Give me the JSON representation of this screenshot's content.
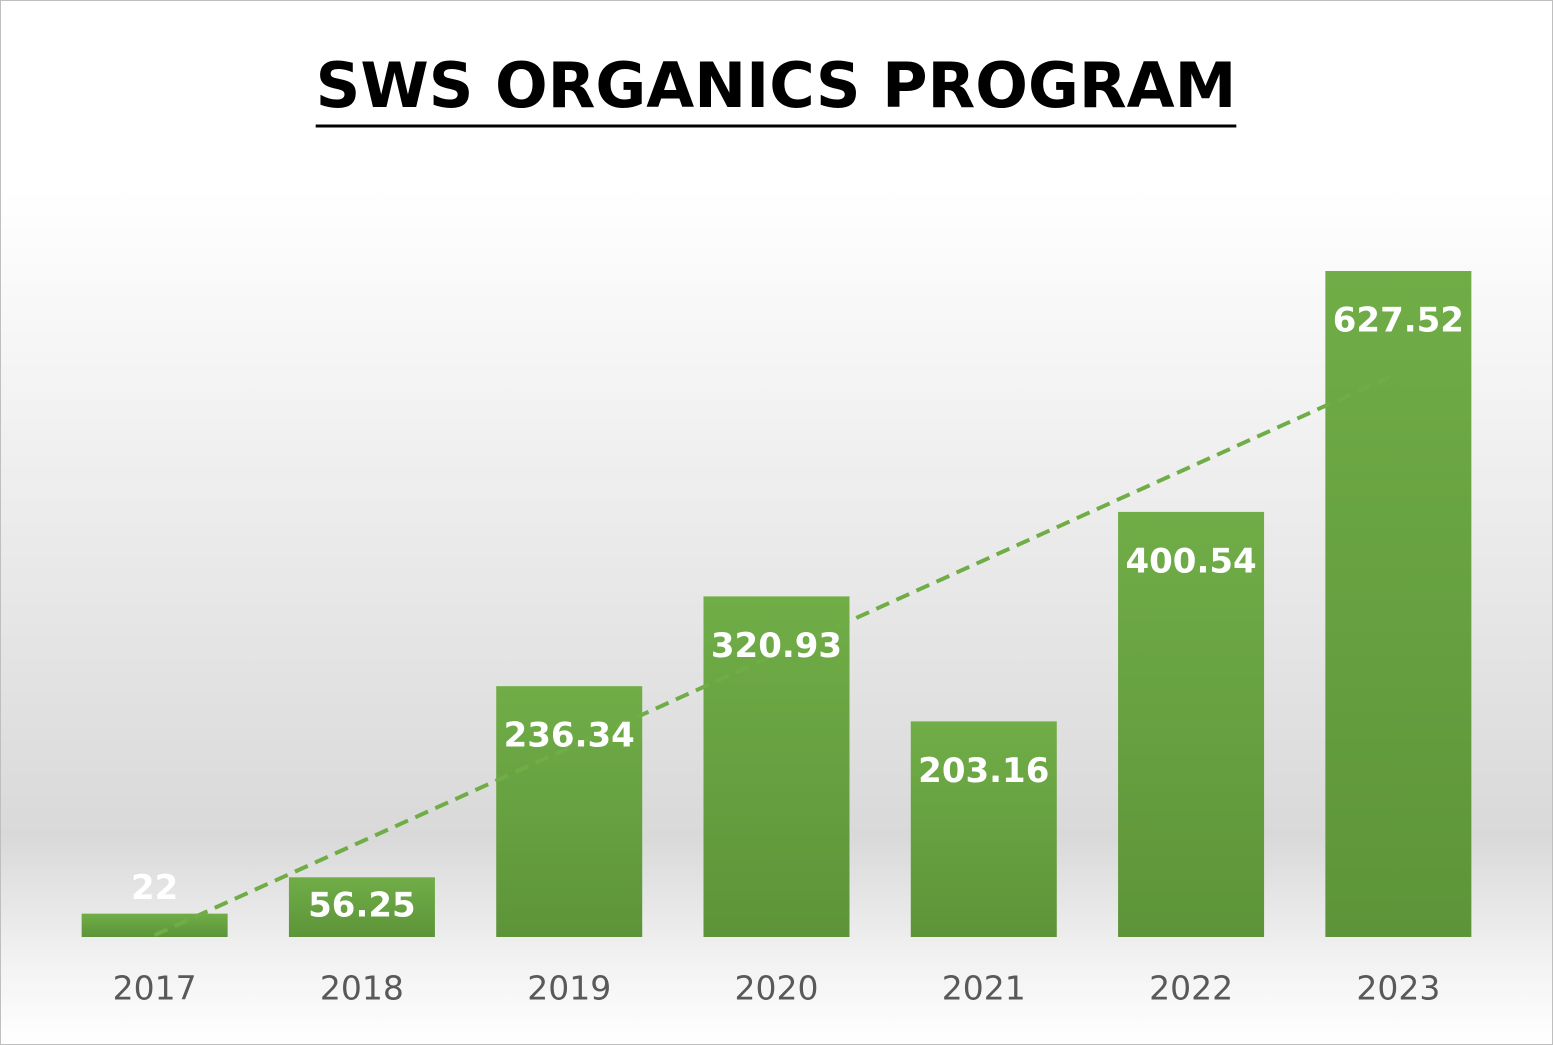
{
  "chart_data": {
    "type": "bar",
    "title": "SWS ORGANICS PROGRAM",
    "categories": [
      "2017",
      "2018",
      "2019",
      "2020",
      "2021",
      "2022",
      "2023"
    ],
    "values": [
      22,
      56.25,
      236.34,
      320.93,
      203.16,
      400.54,
      627.52
    ],
    "color": "#70ad47",
    "trendline": true
  }
}
